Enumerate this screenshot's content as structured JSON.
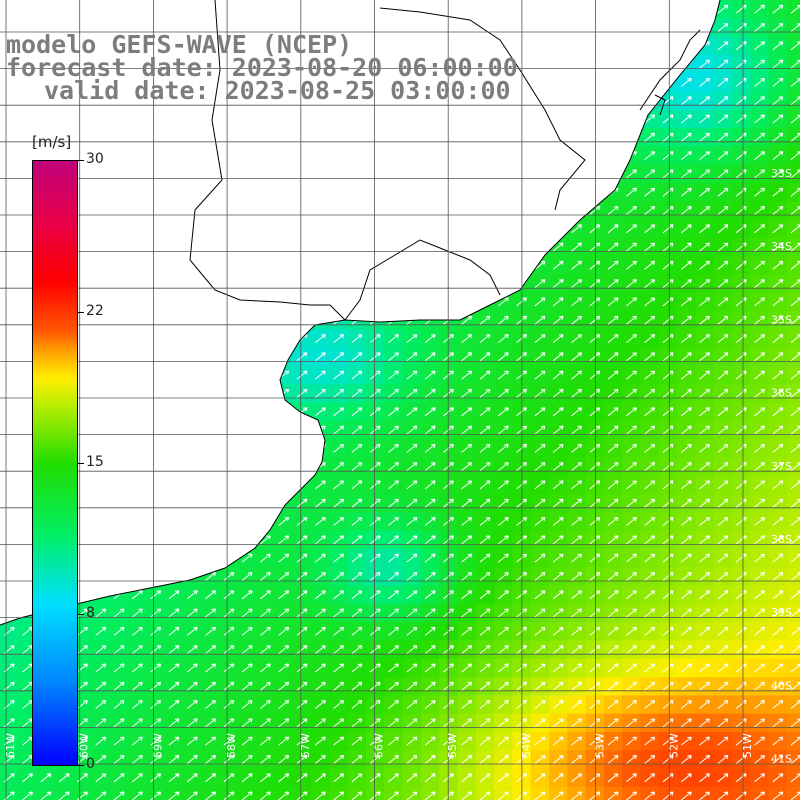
{
  "header": {
    "line1": "modelo GEFS-WAVE (NCEP)",
    "line2": "forecast date: 2023-08-20 06:00:00",
    "line3": "valid date: 2023-08-25 03:00:00"
  },
  "colorbar": {
    "unit": "[m/s]",
    "ticks": [
      "30",
      "22",
      "15",
      "8",
      "0"
    ]
  },
  "lat_labels": [
    "33S",
    "34S",
    "35S",
    "36S",
    "37S",
    "38S",
    "39S",
    "40S",
    "41S"
  ],
  "lon_labels": [
    "61W",
    "60W",
    "59W",
    "58W",
    "57W",
    "56W",
    "55W",
    "54W",
    "53W",
    "52W",
    "51W"
  ],
  "colors": {
    "land": "#ffffff",
    "coast": "#000000",
    "grid": "#555555",
    "arrow": "#ffffff"
  }
}
